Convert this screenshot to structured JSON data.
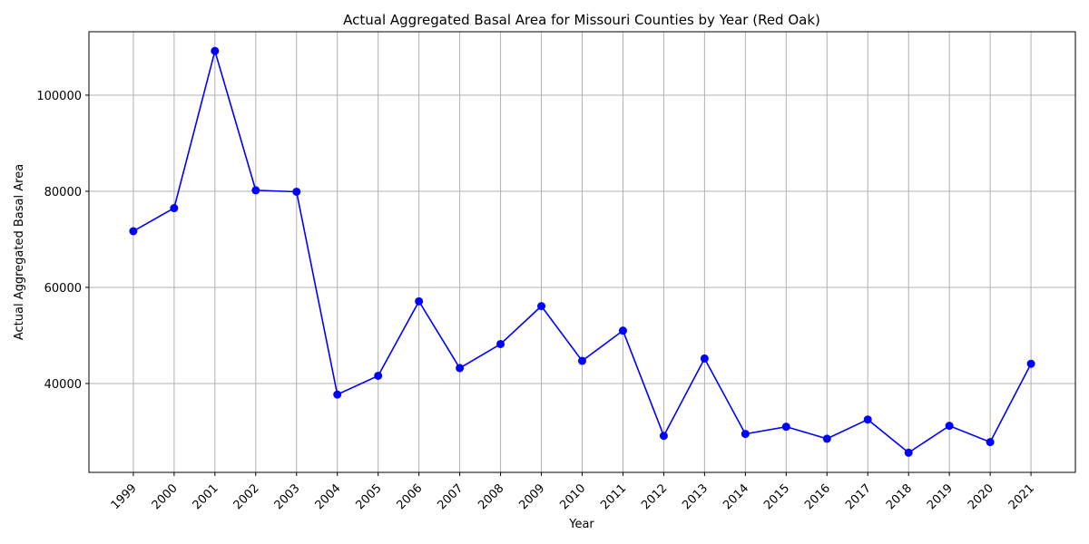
{
  "chart_data": {
    "type": "line",
    "title": "Actual Aggregated Basal Area for Missouri Counties by Year (Red Oak)",
    "xlabel": "Year",
    "ylabel": "Actual Aggregated Basal Area",
    "x": [
      "1999",
      "2000",
      "2001",
      "2002",
      "2003",
      "2004",
      "2005",
      "2006",
      "2007",
      "2008",
      "2009",
      "2010",
      "2011",
      "2012",
      "2013",
      "2014",
      "2015",
      "2016",
      "2017",
      "2018",
      "2019",
      "2020",
      "2021"
    ],
    "series": [
      {
        "values": [
          71700,
          76500,
          109200,
          80200,
          79900,
          37700,
          41600,
          57100,
          43200,
          48200,
          56100,
          44700,
          51000,
          29100,
          45200,
          29500,
          31000,
          28500,
          32500,
          25600,
          31200,
          27800,
          44100
        ],
        "color": "#0000ff",
        "marker": "circle"
      }
    ],
    "ylim": [
      21500,
      113200
    ],
    "yticks": [
      40000,
      60000,
      80000,
      100000
    ],
    "ytick_labels": [
      "40000",
      "60000",
      "80000",
      "100000"
    ],
    "grid": true,
    "grid_color": "#b0b0b0",
    "x_tick_rotation": 45
  }
}
